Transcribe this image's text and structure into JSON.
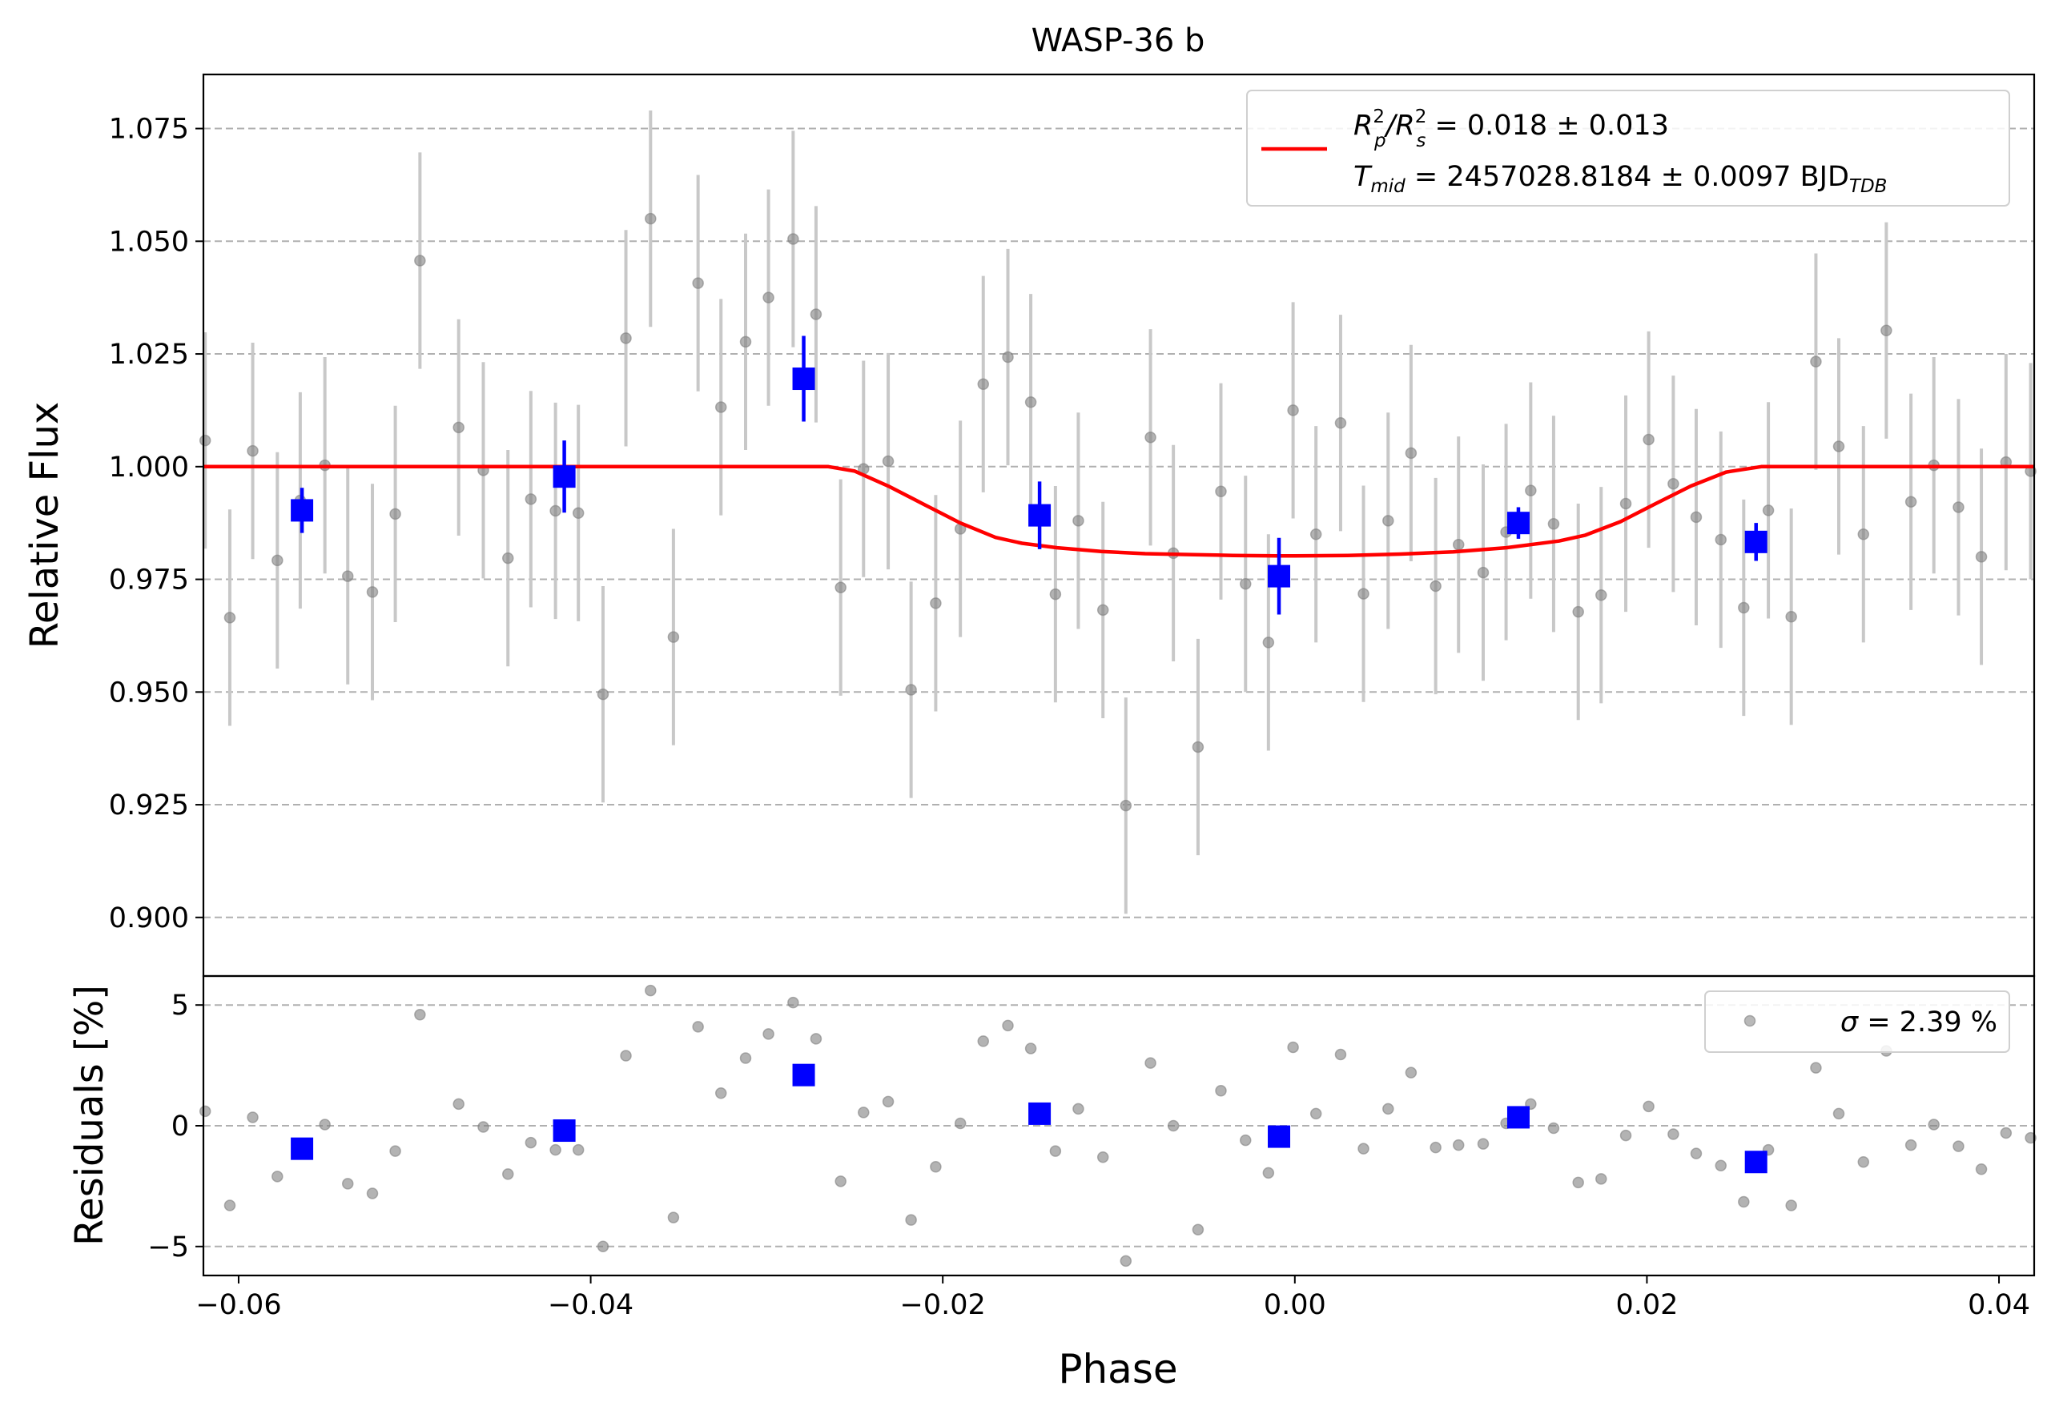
{
  "chart_data": [
    {
      "type": "scatter",
      "title": "WASP-36 b",
      "xlabel": "",
      "ylabel": "Relative Flux",
      "xlim": [
        -0.062,
        0.042
      ],
      "ylim": [
        0.887,
        1.087
      ],
      "yticks": [
        0.9,
        0.925,
        0.95,
        0.975,
        1.0,
        1.025,
        1.05,
        1.075
      ],
      "ytick_labels": [
        "0.900",
        "0.925",
        "0.950",
        "0.975",
        "1.000",
        "1.025",
        "1.050",
        "1.075"
      ],
      "grid": "horizontal dashed",
      "legend": {
        "placement": "top-right",
        "line1": {
          "a": "R",
          "a_sup": "2",
          "a_sub": "p",
          "b": "/R",
          "b_sup": "2",
          "b_sub": "s",
          "rest": " = 0.018 ± 0.013"
        },
        "line2": {
          "a": "T",
          "a_sub": "mid",
          "rest": " = 2457028.8184 ± 0.0097 BJD",
          "unit_sub": "TDB"
        }
      },
      "colors": {
        "data": "#808080",
        "errorbar": "#c8c8c8",
        "binned": "#0000ff",
        "model": "#ff0000"
      },
      "series": [
        {
          "x": [
            -0.0619,
            -0.0605,
            -0.0592,
            -0.0578,
            -0.0565,
            -0.0551,
            -0.0538,
            -0.0524,
            -0.0511,
            -0.0497,
            -0.0475,
            -0.0461,
            -0.0447,
            -0.0434,
            -0.042,
            -0.0407,
            -0.0393,
            -0.038,
            -0.0366,
            -0.0353,
            -0.0339,
            -0.0326,
            -0.0312,
            -0.0299,
            -0.0285,
            -0.0272,
            -0.0258,
            -0.0245,
            -0.0231,
            -0.0218,
            -0.0204,
            -0.019,
            -0.0177,
            -0.0163,
            -0.015,
            -0.0136,
            -0.0123,
            -0.0109,
            -0.0096,
            -0.0082,
            -0.0069,
            -0.0055,
            -0.0042,
            -0.0028,
            -0.0015,
            -0.0001,
            0.0012,
            0.0026,
            0.0039,
            0.0053,
            0.0066,
            0.008,
            0.0093,
            0.0107,
            0.012,
            0.0134,
            0.0147,
            0.0161,
            0.0174,
            0.0188,
            0.0201,
            0.0215,
            0.0228,
            0.0242,
            0.0255,
            0.0269,
            0.0282,
            0.0296,
            0.0309,
            0.0323,
            0.0336,
            0.035,
            0.0363,
            0.0377,
            0.039,
            0.0404,
            0.0418
          ],
          "y": [
            1.0058,
            0.9665,
            1.0035,
            0.9792,
            0.9925,
            1.0003,
            0.9757,
            0.9722,
            0.9895,
            1.0457,
            1.0087,
            0.9992,
            0.9797,
            0.9928,
            0.9902,
            0.9897,
            0.9495,
            1.0285,
            1.055,
            0.9622,
            1.0407,
            1.0132,
            1.0277,
            1.0375,
            1.0505,
            1.0338,
            0.9732,
            0.9995,
            1.0012,
            0.9505,
            0.9697,
            0.9862,
            1.0183,
            1.0243,
            1.0143,
            0.9717,
            0.988,
            0.9682,
            0.9248,
            1.0065,
            0.9808,
            0.9378,
            0.9945,
            0.974,
            0.961,
            1.0125,
            0.985,
            1.0097,
            0.9718,
            0.988,
            1.003,
            0.9735,
            0.9827,
            0.9765,
            0.9855,
            0.9947,
            0.9873,
            0.9678,
            0.9715,
            0.9918,
            1.006,
            0.9962,
            0.9888,
            0.9838,
            0.9687,
            0.9903,
            0.9667,
            1.0233,
            1.0045,
            0.985,
            1.0302,
            0.9922,
            1.0003,
            0.991,
            0.98,
            1.001,
            0.999
          ],
          "yerr": [
            0.024,
            0.024,
            0.024,
            0.024,
            0.024,
            0.024,
            0.024,
            0.024,
            0.024,
            0.024,
            0.024,
            0.024,
            0.024,
            0.024,
            0.024,
            0.024,
            0.024,
            0.024,
            0.024,
            0.024,
            0.024,
            0.024,
            0.024,
            0.024,
            0.024,
            0.024,
            0.024,
            0.024,
            0.024,
            0.024,
            0.024,
            0.024,
            0.024,
            0.024,
            0.024,
            0.024,
            0.024,
            0.024,
            0.024,
            0.024,
            0.024,
            0.024,
            0.024,
            0.024,
            0.024,
            0.024,
            0.024,
            0.024,
            0.024,
            0.024,
            0.024,
            0.024,
            0.024,
            0.024,
            0.024,
            0.024,
            0.024,
            0.024,
            0.024,
            0.024,
            0.024,
            0.024,
            0.024,
            0.024,
            0.024,
            0.024,
            0.024,
            0.024,
            0.024,
            0.024,
            0.024,
            0.024,
            0.024,
            0.024,
            0.024,
            0.024,
            0.024
          ]
        },
        {
          "x": [
            -0.0564,
            -0.0415,
            -0.0279,
            -0.0145,
            -0.0009,
            0.0127,
            0.0262
          ],
          "y": [
            0.9903,
            0.9978,
            1.0195,
            0.9892,
            0.9757,
            0.9875,
            0.9833
          ],
          "yerr": [
            0.005,
            0.008,
            0.0095,
            0.0075,
            0.0085,
            0.0035,
            0.0042
          ]
        },
        {
          "x": [
            -0.062,
            -0.0265,
            -0.025,
            -0.023,
            -0.021,
            -0.019,
            -0.017,
            -0.0155,
            -0.0135,
            -0.011,
            -0.0085,
            -0.006,
            -0.0035,
            -0.001,
            0.0,
            0.003,
            0.006,
            0.009,
            0.012,
            0.015,
            0.0165,
            0.0185,
            0.0205,
            0.0225,
            0.0245,
            0.0265,
            0.042
          ],
          "y": [
            1.0,
            1.0,
            0.999,
            0.9955,
            0.9915,
            0.9875,
            0.9843,
            0.983,
            0.982,
            0.9812,
            0.9807,
            0.9805,
            0.9803,
            0.9802,
            0.9802,
            0.9803,
            0.9806,
            0.9811,
            0.982,
            0.9835,
            0.9848,
            0.9878,
            0.9918,
            0.9957,
            0.9988,
            1.0,
            1.0
          ]
        }
      ]
    },
    {
      "type": "scatter",
      "title": "",
      "xlabel": "Phase",
      "ylabel": "Residuals [%]",
      "xlim": [
        -0.062,
        0.042
      ],
      "ylim": [
        -6.2,
        6.2
      ],
      "xticks": [
        -0.06,
        -0.04,
        -0.02,
        0.0,
        0.02,
        0.04
      ],
      "xtick_labels": [
        "−0.06",
        "−0.04",
        "−0.02",
        "0.00",
        "0.02",
        "0.04"
      ],
      "yticks": [
        -5,
        0,
        5
      ],
      "ytick_labels": [
        "−5",
        "0",
        "5"
      ],
      "grid": "horizontal dashed",
      "legend": {
        "placement": "top-right",
        "sigma_symbol": "σ",
        "text": " = 2.39 %"
      },
      "series": [
        {
          "x": [
            -0.0619,
            -0.0605,
            -0.0592,
            -0.0578,
            -0.0565,
            -0.0551,
            -0.0538,
            -0.0524,
            -0.0511,
            -0.0497,
            -0.0475,
            -0.0461,
            -0.0447,
            -0.0434,
            -0.042,
            -0.0407,
            -0.0393,
            -0.038,
            -0.0366,
            -0.0353,
            -0.0339,
            -0.0326,
            -0.0312,
            -0.0299,
            -0.0285,
            -0.0272,
            -0.0258,
            -0.0245,
            -0.0231,
            -0.0218,
            -0.0204,
            -0.019,
            -0.0177,
            -0.0163,
            -0.015,
            -0.0136,
            -0.0123,
            -0.0109,
            -0.0096,
            -0.0082,
            -0.0069,
            -0.0055,
            -0.0042,
            -0.0028,
            -0.0015,
            -0.0001,
            0.0012,
            0.0026,
            0.0039,
            0.0053,
            0.0066,
            0.008,
            0.0093,
            0.0107,
            0.012,
            0.0134,
            0.0147,
            0.0161,
            0.0174,
            0.0188,
            0.0201,
            0.0215,
            0.0228,
            0.0242,
            0.0255,
            0.0269,
            0.0282,
            0.0296,
            0.0309,
            0.0323,
            0.0336,
            0.035,
            0.0363,
            0.0377,
            0.039,
            0.0404,
            0.0418
          ],
          "y": [
            0.6,
            -3.3,
            0.35,
            -2.1,
            -0.75,
            0.05,
            -2.4,
            -2.8,
            -1.05,
            4.6,
            0.9,
            -0.05,
            -2.0,
            -0.7,
            -1.0,
            -1.0,
            -5.0,
            2.9,
            5.6,
            -3.8,
            4.1,
            1.35,
            2.8,
            3.8,
            5.1,
            3.6,
            -2.3,
            0.55,
            1.0,
            -3.9,
            -1.7,
            0.1,
            3.5,
            4.15,
            3.2,
            -1.05,
            0.7,
            -1.3,
            -5.6,
            2.6,
            0.0,
            -4.3,
            1.45,
            -0.6,
            -1.95,
            3.25,
            0.5,
            2.95,
            -0.95,
            0.7,
            2.2,
            -0.9,
            -0.8,
            -0.75,
            0.1,
            0.9,
            -0.1,
            -2.35,
            -2.2,
            -0.4,
            0.8,
            -0.35,
            -1.15,
            -1.65,
            -3.15,
            -1.0,
            -3.3,
            2.4,
            0.5,
            -1.5,
            3.1,
            -0.8,
            0.05,
            -0.85,
            -1.8,
            -0.3,
            -0.5
          ]
        },
        {
          "x": [
            -0.0564,
            -0.0415,
            -0.0279,
            -0.0145,
            -0.0009,
            0.0127,
            0.0262
          ],
          "y": [
            -0.95,
            -0.2,
            2.1,
            0.5,
            -0.45,
            0.35,
            -1.5
          ]
        }
      ]
    }
  ]
}
